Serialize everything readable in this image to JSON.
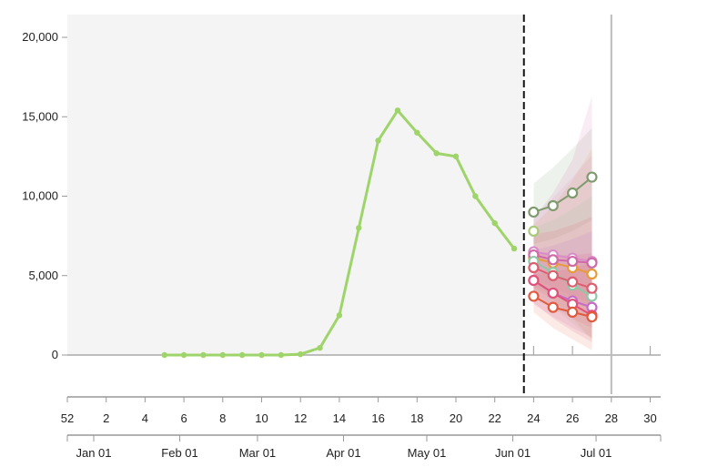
{
  "chart_data": {
    "type": "line",
    "ylim": [
      -2700,
      21000
    ],
    "y_ticks": [
      {
        "value": 0,
        "label": "0"
      },
      {
        "value": 5000,
        "label": "5,000"
      },
      {
        "value": 10000,
        "label": "10,000"
      },
      {
        "value": 15000,
        "label": "15,000"
      },
      {
        "value": 20000,
        "label": "20,000"
      }
    ],
    "week_ticks": [
      "52",
      "2",
      "4",
      "6",
      "8",
      "10",
      "12",
      "14",
      "16",
      "18",
      "20",
      "22",
      "24",
      "26",
      "28",
      "30"
    ],
    "month_ticks": [
      "Jan 01",
      "Feb 01",
      "Mar 01",
      "Apr 01",
      "May 01",
      "Jun 01",
      "Jul 01"
    ],
    "forecast_start_week": 23.5,
    "current_week_line": 28,
    "observed": {
      "color": "#9ed46a",
      "points": [
        [
          5,
          0
        ],
        [
          6,
          0
        ],
        [
          7,
          0
        ],
        [
          8,
          0
        ],
        [
          9,
          0
        ],
        [
          10,
          0
        ],
        [
          11,
          0
        ],
        [
          12,
          50
        ],
        [
          13,
          450
        ],
        [
          14,
          2500
        ],
        [
          15,
          8000
        ],
        [
          16,
          13500
        ],
        [
          17,
          15400
        ],
        [
          18,
          14000
        ],
        [
          19,
          12700
        ],
        [
          20,
          12500
        ],
        [
          21,
          10000
        ],
        [
          22,
          8300
        ],
        [
          23,
          6700
        ]
      ]
    },
    "forecasts": [
      {
        "color": "#7f9a6e",
        "values": [
          9000,
          9400,
          10200,
          11200
        ],
        "lower": [
          7000,
          7300,
          7800,
          8500
        ],
        "upper": [
          10800,
          11800,
          13000,
          14300
        ]
      },
      {
        "color": "#a8c97a",
        "values": [
          7800
        ],
        "lower": [
          6500
        ],
        "upper": [
          9200
        ]
      },
      {
        "color": "#d98cc8",
        "values": [
          6500,
          6300,
          6100,
          5900
        ],
        "lower": [
          4700,
          4300,
          3700,
          3300
        ],
        "upper": [
          8700,
          9900,
          11200,
          12600
        ]
      },
      {
        "color": "#e79b3b",
        "values": [
          6100,
          5800,
          5500,
          5100
        ],
        "lower": [
          4200,
          3500,
          2300,
          1000
        ],
        "upper": [
          8200,
          9400,
          11000,
          13000
        ]
      },
      {
        "color": "#cf6aa8",
        "values": [
          6300,
          6000,
          5900,
          5800
        ],
        "lower": [
          4300,
          3800,
          3300,
          2900
        ],
        "upper": [
          8600,
          10200,
          12300,
          16300
        ]
      },
      {
        "color": "#8cc9a6",
        "values": [
          5900,
          5200,
          4400,
          3700
        ],
        "lower": [
          4000,
          3000,
          2000,
          1000
        ],
        "upper": [
          8000,
          8500,
          9200,
          10000
        ]
      },
      {
        "color": "#de5d6f",
        "values": [
          5500,
          5000,
          4600,
          4200
        ],
        "lower": [
          3800,
          3000,
          2300,
          1700
        ],
        "upper": [
          7600,
          7800,
          8200,
          8700
        ]
      },
      {
        "color": "#c46cc6",
        "values": [
          4700,
          3900,
          3400,
          3000
        ],
        "lower": [
          3200,
          2400,
          1700,
          1100
        ],
        "upper": [
          6600,
          6900,
          7300,
          7800
        ]
      },
      {
        "color": "#e0527a",
        "values": [
          4700,
          3900,
          3200,
          2500
        ],
        "lower": [
          3300,
          2300,
          1500,
          800
        ],
        "upper": [
          6400,
          6300,
          6300,
          6400
        ]
      },
      {
        "color": "#e05a3c",
        "values": [
          3700,
          3000,
          2700,
          2400
        ],
        "lower": [
          2700,
          1700,
          1000,
          300
        ],
        "upper": [
          5100,
          5200,
          5500,
          5800
        ]
      }
    ]
  }
}
